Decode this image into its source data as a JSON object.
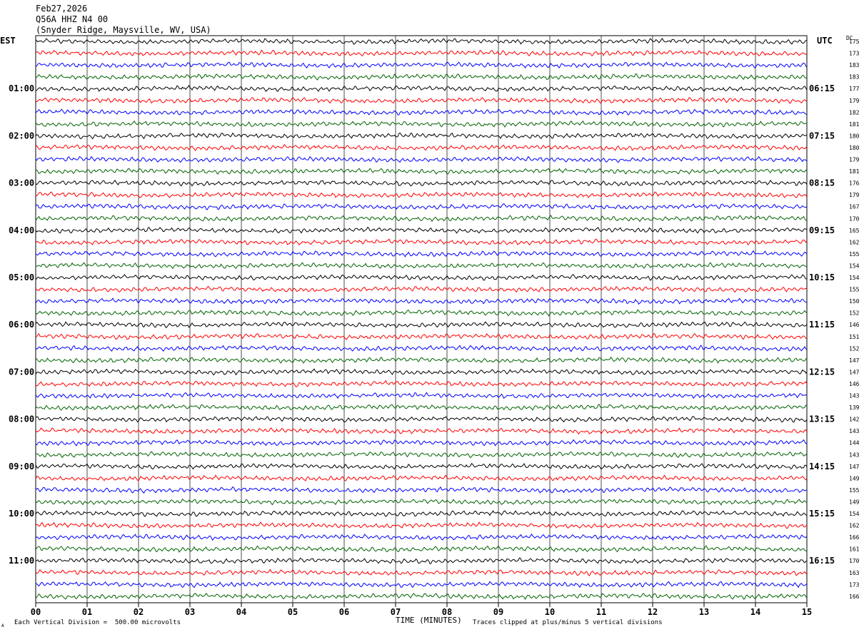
{
  "header": {
    "date": "Feb27,2026",
    "channel": "Q56A HHZ N4 00",
    "location": "(Snyder Ridge, Maysville, WV, USA)"
  },
  "left_axis_title": "EST",
  "right_axis_title": "UTC",
  "dc_label": "DC",
  "footer": {
    "corner_mark": "A",
    "scale_note": "Each Vertical Division =  500.00 microvolts",
    "xlabel": "TIME (MINUTES)",
    "clip_note": "Traces clipped at plus/minus 5 vertical divisions"
  },
  "chart_data": {
    "type": "line",
    "title": "Q56A HHZ N4 00",
    "xlabel": "TIME (MINUTES)",
    "ylabel": "",
    "xlim": [
      0,
      15
    ],
    "x_ticks": [
      "00",
      "01",
      "02",
      "03",
      "04",
      "05",
      "06",
      "07",
      "08",
      "09",
      "10",
      "11",
      "12",
      "13",
      "14",
      "15"
    ],
    "trace_colors": [
      "#000000",
      "#ff0000",
      "#0000ff",
      "#006400"
    ],
    "trace_count": 48,
    "est_hour_labels": [
      "01:00",
      "02:00",
      "03:00",
      "04:00",
      "05:00",
      "06:00",
      "07:00",
      "08:00",
      "09:00",
      "10:00",
      "11:00"
    ],
    "utc_hour_labels": [
      "06:15",
      "07:15",
      "08:15",
      "09:15",
      "10:15",
      "11:15",
      "12:15",
      "13:15",
      "14:15",
      "15:15",
      "16:15"
    ],
    "dc_offsets": [
      175,
      173,
      183,
      183,
      177,
      179,
      182,
      181,
      180,
      180,
      179,
      181,
      176,
      179,
      167,
      170,
      165,
      162,
      155,
      154,
      154,
      155,
      150,
      152,
      146,
      151,
      152,
      147,
      147,
      146,
      143,
      139,
      142,
      143,
      144,
      143,
      147,
      149,
      155,
      149,
      154,
      162,
      166,
      161,
      170,
      163,
      173,
      166
    ]
  }
}
